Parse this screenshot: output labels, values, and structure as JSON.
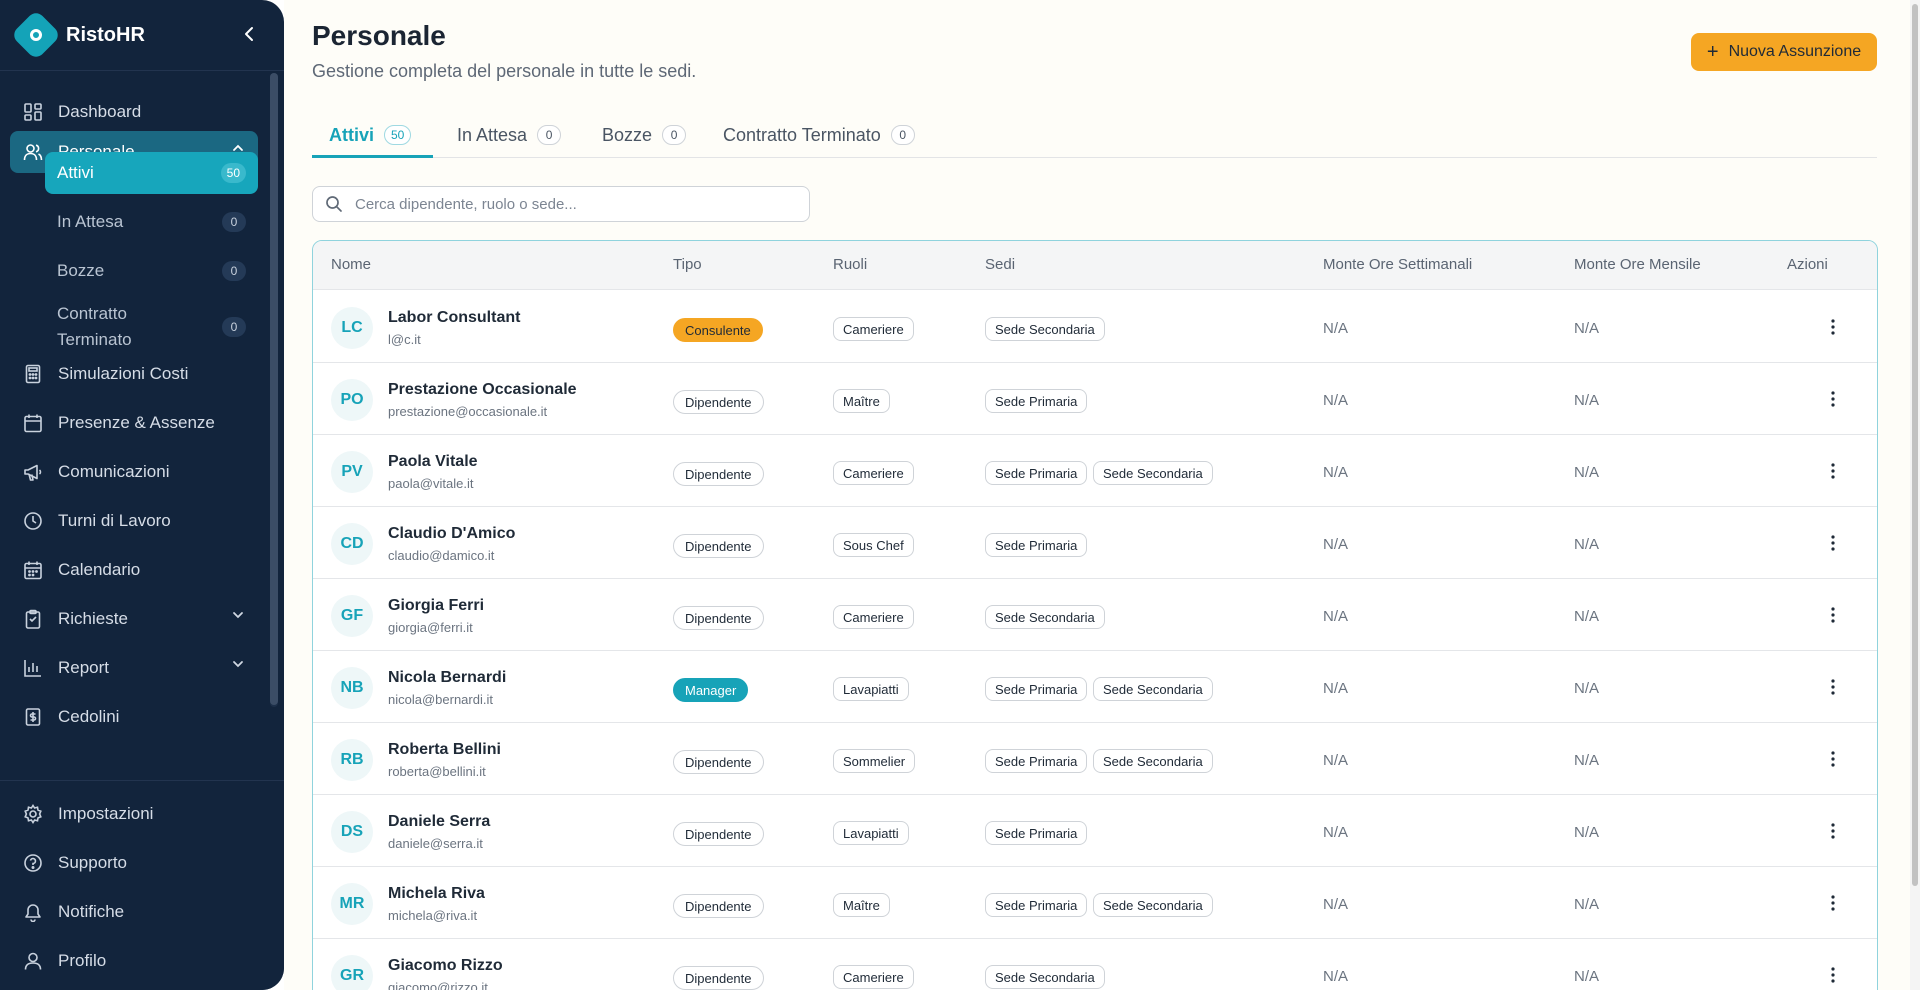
{
  "app": {
    "name": "RistoHR"
  },
  "sidebar": {
    "items": [
      {
        "label": "Dashboard",
        "icon": "dashboard-icon"
      },
      {
        "label": "Personale",
        "icon": "users-icon"
      },
      {
        "label": "Simulazioni Costi",
        "icon": "calculator-icon"
      },
      {
        "label": "Presenze & Assenze",
        "icon": "calendar-check-icon"
      },
      {
        "label": "Comunicazioni",
        "icon": "megaphone-icon"
      },
      {
        "label": "Turni di Lavoro",
        "icon": "clock-icon"
      },
      {
        "label": "Calendario",
        "icon": "calendar-icon"
      },
      {
        "label": "Richieste",
        "icon": "clipboard-icon"
      },
      {
        "label": "Report",
        "icon": "bar-chart-icon"
      },
      {
        "label": "Cedolini",
        "icon": "payslip-icon"
      }
    ],
    "personale_sub": [
      {
        "label": "Attivi",
        "count": "50"
      },
      {
        "label": "In Attesa",
        "count": "0"
      },
      {
        "label": "Bozze",
        "count": "0"
      },
      {
        "label": "Contratto",
        "label2": "Terminato",
        "count": "0"
      }
    ],
    "bottom": [
      {
        "label": "Impostazioni",
        "icon": "gear-icon"
      },
      {
        "label": "Supporto",
        "icon": "help-icon"
      },
      {
        "label": "Notifiche",
        "icon": "bell-icon"
      },
      {
        "label": "Profilo",
        "icon": "user-icon"
      }
    ]
  },
  "header": {
    "title": "Personale",
    "subtitle": "Gestione completa del personale in tutte le sedi.",
    "new_button": "Nuova Assunzione"
  },
  "tabs": [
    {
      "label": "Attivi",
      "count": "50"
    },
    {
      "label": "In Attesa",
      "count": "0"
    },
    {
      "label": "Bozze",
      "count": "0"
    },
    {
      "label": "Contratto Terminato",
      "count": "0"
    }
  ],
  "search": {
    "placeholder": "Cerca dipendente, ruolo o sede..."
  },
  "table": {
    "headers": {
      "nome": "Nome",
      "tipo": "Tipo",
      "ruoli": "Ruoli",
      "sedi": "Sedi",
      "settimanali": "Monte Ore Settimanali",
      "mensile": "Monte Ore Mensile",
      "azioni": "Azioni"
    },
    "rows": [
      {
        "initials": "LC",
        "name": "Labor Consultant",
        "email": "l@c.it",
        "tipo": "Consulente",
        "ruolo": "Cameriere",
        "sedi": [
          "Sede Secondaria"
        ],
        "week": "N/A",
        "month": "N/A"
      },
      {
        "initials": "PO",
        "name": "Prestazione Occasionale",
        "email": "prestazione@occasionale.it",
        "tipo": "Dipendente",
        "ruolo": "Maître",
        "sedi": [
          "Sede Primaria"
        ],
        "week": "N/A",
        "month": "N/A"
      },
      {
        "initials": "PV",
        "name": "Paola Vitale",
        "email": "paola@vitale.it",
        "tipo": "Dipendente",
        "ruolo": "Cameriere",
        "sedi": [
          "Sede Primaria",
          "Sede Secondaria"
        ],
        "week": "N/A",
        "month": "N/A"
      },
      {
        "initials": "CD",
        "name": "Claudio D'Amico",
        "email": "claudio@damico.it",
        "tipo": "Dipendente",
        "ruolo": "Sous Chef",
        "sedi": [
          "Sede Primaria"
        ],
        "week": "N/A",
        "month": "N/A"
      },
      {
        "initials": "GF",
        "name": "Giorgia Ferri",
        "email": "giorgia@ferri.it",
        "tipo": "Dipendente",
        "ruolo": "Cameriere",
        "sedi": [
          "Sede Secondaria"
        ],
        "week": "N/A",
        "month": "N/A"
      },
      {
        "initials": "NB",
        "name": "Nicola Bernardi",
        "email": "nicola@bernardi.it",
        "tipo": "Manager",
        "ruolo": "Lavapiatti",
        "sedi": [
          "Sede Primaria",
          "Sede Secondaria"
        ],
        "week": "N/A",
        "month": "N/A"
      },
      {
        "initials": "RB",
        "name": "Roberta Bellini",
        "email": "roberta@bellini.it",
        "tipo": "Dipendente",
        "ruolo": "Sommelier",
        "sedi": [
          "Sede Primaria",
          "Sede Secondaria"
        ],
        "week": "N/A",
        "month": "N/A"
      },
      {
        "initials": "DS",
        "name": "Daniele Serra",
        "email": "daniele@serra.it",
        "tipo": "Dipendente",
        "ruolo": "Lavapiatti",
        "sedi": [
          "Sede Primaria"
        ],
        "week": "N/A",
        "month": "N/A"
      },
      {
        "initials": "MR",
        "name": "Michela Riva",
        "email": "michela@riva.it",
        "tipo": "Dipendente",
        "ruolo": "Maître",
        "sedi": [
          "Sede Primaria",
          "Sede Secondaria"
        ],
        "week": "N/A",
        "month": "N/A"
      },
      {
        "initials": "GR",
        "name": "Giacomo Rizzo",
        "email": "giacomo@rizzo.it",
        "tipo": "Dipendente",
        "ruolo": "Cameriere",
        "sedi": [
          "Sede Secondaria"
        ],
        "week": "N/A",
        "month": "N/A"
      }
    ]
  }
}
